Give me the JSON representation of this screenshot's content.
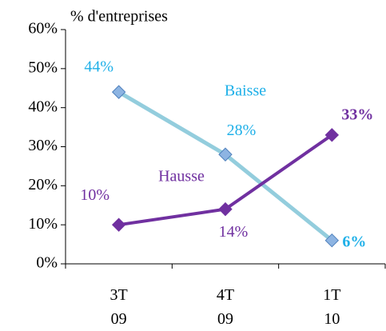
{
  "chart_data": {
    "type": "line",
    "y_axis_label": "% d'entreprises",
    "categories": [
      "3T 09",
      "4T 09",
      "1T 10"
    ],
    "series": [
      {
        "name": "Baisse",
        "color": "#93cddd",
        "marker_color": "#8db4e2",
        "label_color": "#1fb0e8",
        "values": [
          44,
          28,
          6
        ],
        "value_labels": [
          "44%",
          "28%",
          "6%"
        ]
      },
      {
        "name": "Hausse",
        "color": "#7030a0",
        "marker_color": "#7030a0",
        "label_color": "#7030a0",
        "values": [
          10,
          14,
          33
        ],
        "value_labels": [
          "10%",
          "14%",
          "33%"
        ]
      }
    ],
    "ylim": [
      0,
      60
    ],
    "yticks": [
      {
        "value": 0,
        "label": "0%"
      },
      {
        "value": 10,
        "label": "10%"
      },
      {
        "value": 20,
        "label": "20%"
      },
      {
        "value": 30,
        "label": "30%"
      },
      {
        "value": 40,
        "label": "40%"
      },
      {
        "value": 50,
        "label": "50%"
      },
      {
        "value": 60,
        "label": "60%"
      }
    ],
    "grid": false
  }
}
